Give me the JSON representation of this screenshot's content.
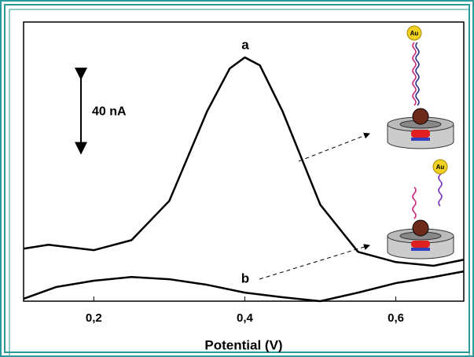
{
  "chart_data": {
    "type": "line",
    "x_label": "Potential (V)",
    "xlim": [
      0.107,
      0.69
    ],
    "xticks": [
      {
        "value": 0.2,
        "label": "0,2"
      },
      {
        "value": 0.4,
        "label": "0,4"
      },
      {
        "value": 0.6,
        "label": "0,6"
      }
    ],
    "ylim": [
      0,
      150
    ],
    "scale_bar": {
      "value": 40,
      "label": "40 nA"
    },
    "annotations": [
      "Au",
      "Au"
    ],
    "series": [
      {
        "name": "a",
        "color": "#000000",
        "x": [
          0.107,
          0.14,
          0.2,
          0.25,
          0.3,
          0.35,
          0.38,
          0.4,
          0.42,
          0.45,
          0.5,
          0.55,
          0.6,
          0.65,
          0.69
        ],
        "values": [
          28.2,
          30.3,
          27.4,
          32.8,
          53.9,
          102,
          125,
          131,
          126.7,
          102,
          51.8,
          26.5,
          21,
          19,
          22.3
        ]
      },
      {
        "name": "b",
        "color": "#000000",
        "x": [
          0.107,
          0.15,
          0.2,
          0.25,
          0.3,
          0.35,
          0.4,
          0.45,
          0.5,
          0.55,
          0.6,
          0.65,
          0.69
        ],
        "values": [
          1.3,
          7.6,
          11,
          13,
          11.8,
          8.8,
          4.6,
          2.1,
          0,
          4.6,
          9.7,
          13,
          16
        ]
      }
    ]
  }
}
